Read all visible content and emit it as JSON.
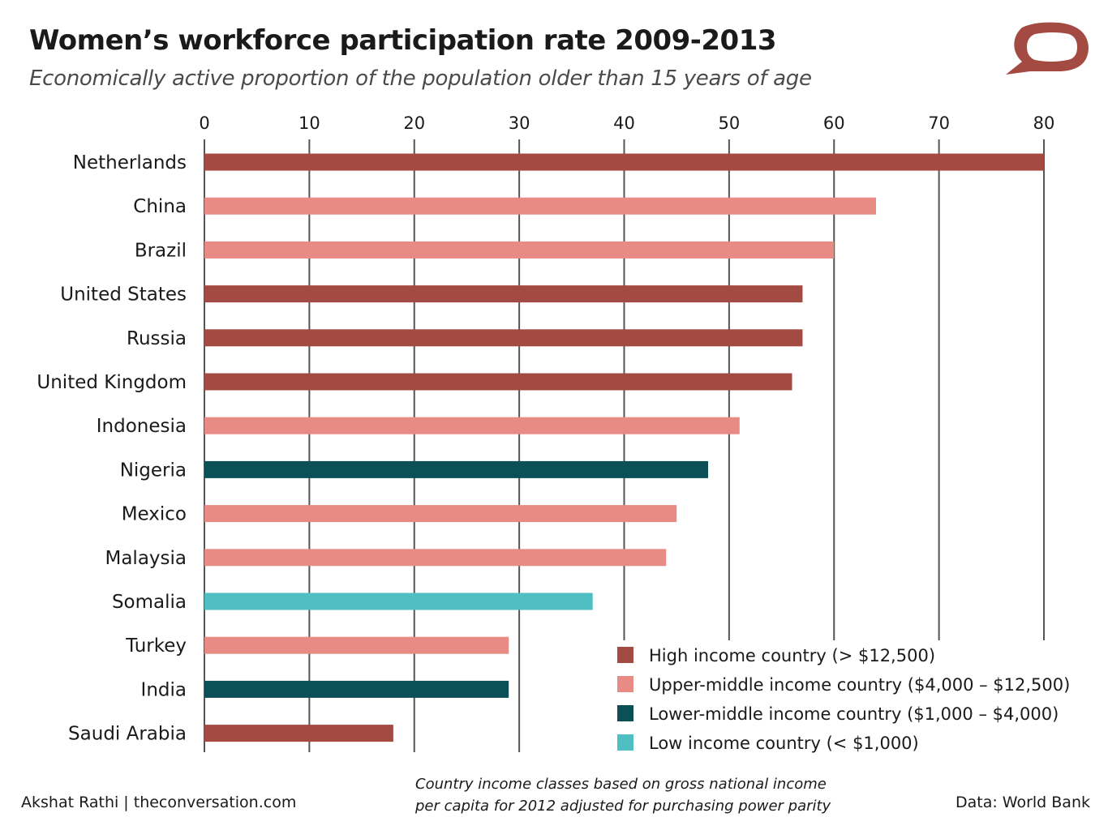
{
  "title": "Women’s workforce participation rate 2009-2013",
  "subtitle": "Economically active proportion of the population older than 15 years of age",
  "footer": {
    "credit": "Akshat Rathi | theconversation.com",
    "note_line1": "Country income classes based on gross national income",
    "note_line2": "per capita for 2012 adjusted for purchasing power parity",
    "source": "Data: World Bank"
  },
  "logo": {
    "icon": "speech-bubble-logo-icon",
    "color": "#a34a43"
  },
  "colors": {
    "high": "#a34a43",
    "upper_middle": "#e88b84",
    "lower_middle": "#0b5057",
    "low": "#4fbfc3",
    "grid": "#555555"
  },
  "chart_data": {
    "type": "bar",
    "orientation": "horizontal",
    "title": "Women’s workforce participation rate 2009-2013",
    "subtitle": "Economically active proportion of the population older than 15 years of age",
    "xlim": [
      0,
      80
    ],
    "xticks": [
      0,
      10,
      20,
      30,
      40,
      50,
      60,
      70,
      80
    ],
    "xaxis_position": "top",
    "grid": true,
    "legend_position": "bottom-right",
    "categories": [
      "Netherlands",
      "China",
      "Brazil",
      "United States",
      "Russia",
      "United Kingdom",
      "Indonesia",
      "Nigeria",
      "Mexico",
      "Malaysia",
      "Somalia",
      "Turkey",
      "India",
      "Saudi Arabia"
    ],
    "values": [
      80,
      64,
      60,
      57,
      57,
      56,
      51,
      48,
      45,
      44,
      37,
      29,
      29,
      18
    ],
    "income_class": [
      "high",
      "upper_middle",
      "upper_middle",
      "high",
      "high",
      "high",
      "upper_middle",
      "lower_middle",
      "upper_middle",
      "upper_middle",
      "low",
      "upper_middle",
      "lower_middle",
      "high"
    ],
    "legend": [
      {
        "key": "high",
        "label": "High income country (> $12,500)"
      },
      {
        "key": "upper_middle",
        "label": "Upper-middle income country ($4,000 – $12,500)"
      },
      {
        "key": "lower_middle",
        "label": "Lower-middle income country ($1,000 – $4,000)"
      },
      {
        "key": "low",
        "label": "Low income country (< $1,000)"
      }
    ]
  }
}
